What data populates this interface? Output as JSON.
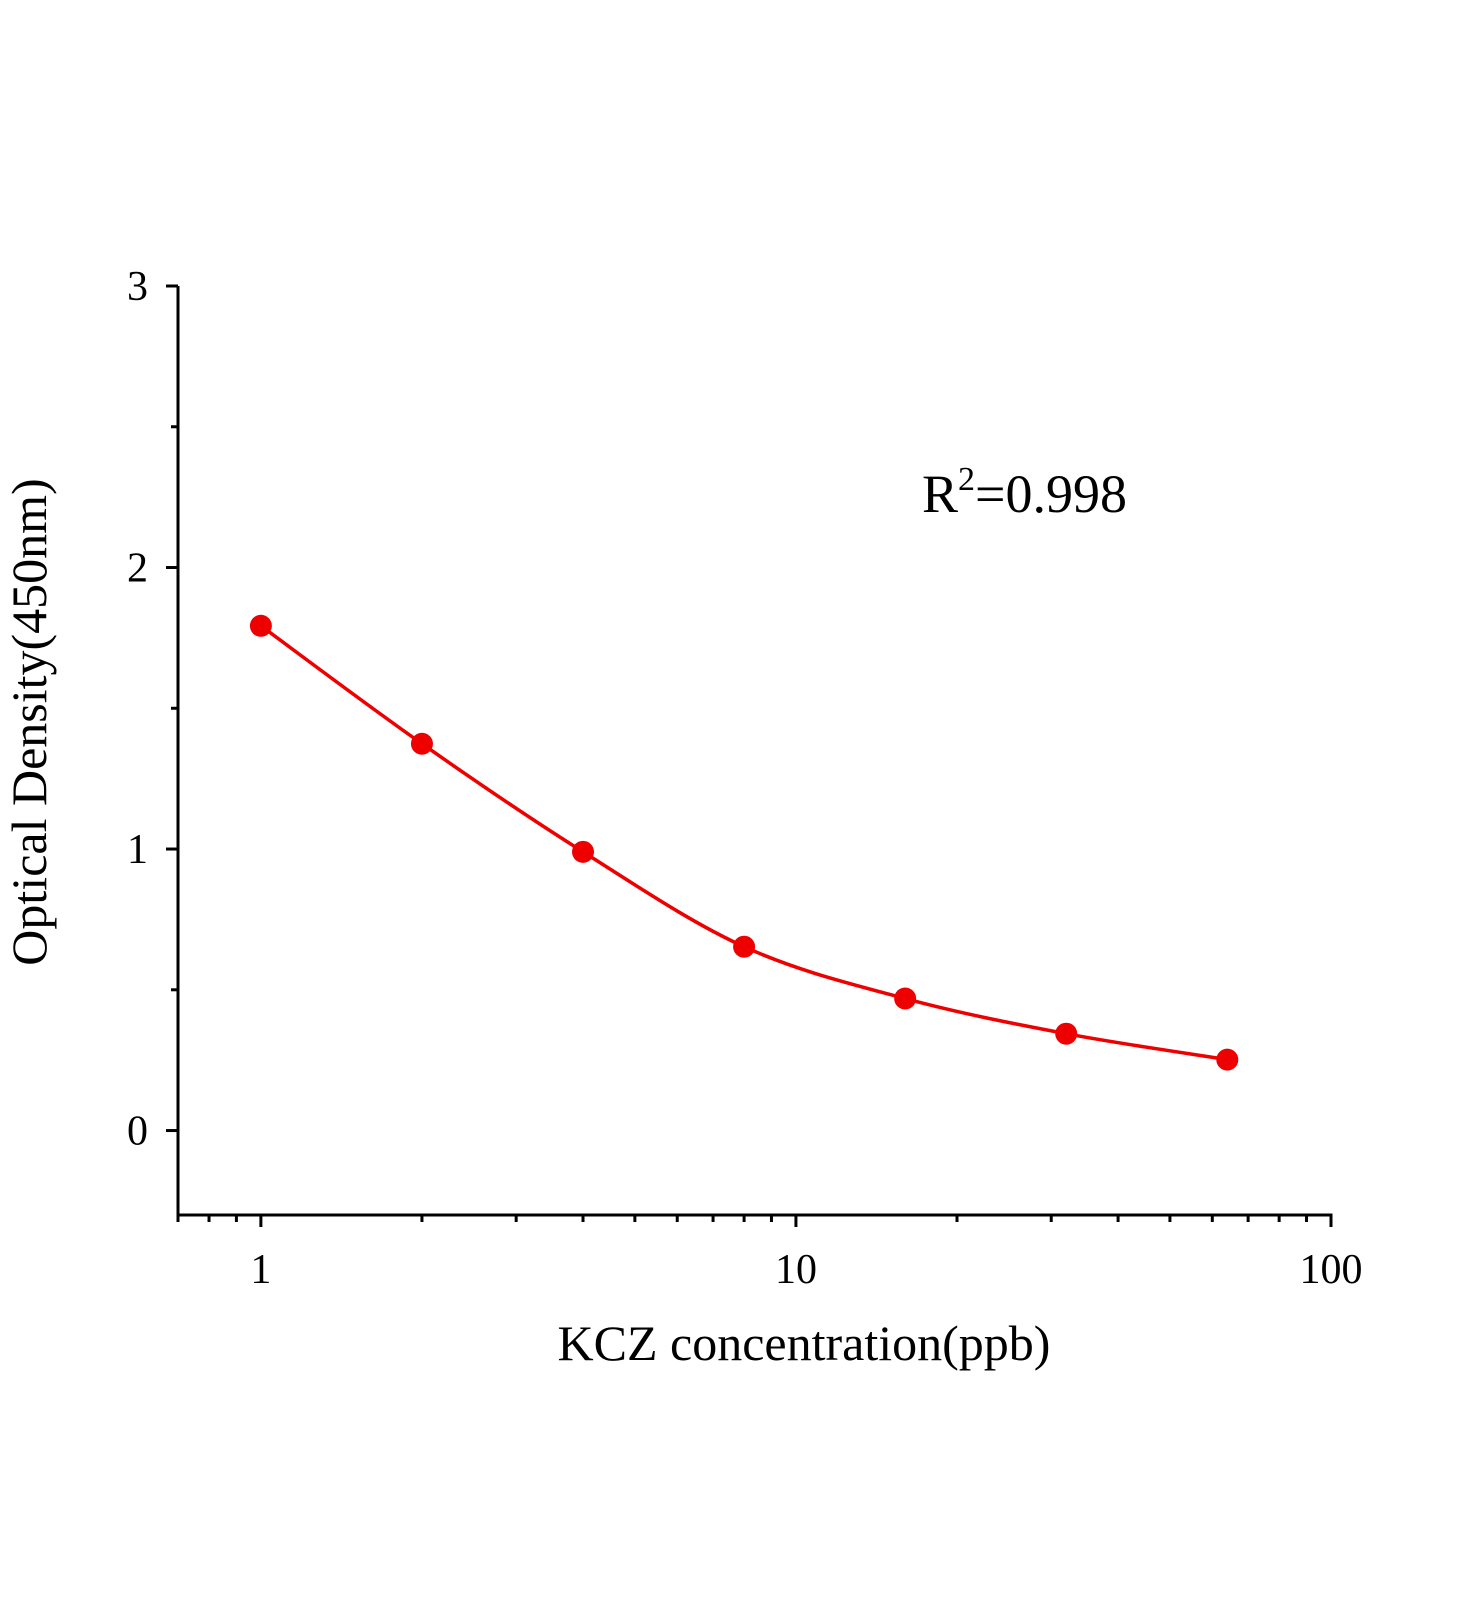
{
  "chart_data": {
    "type": "line",
    "title": "",
    "xlabel": "KCZ concentration(ppb)",
    "ylabel": "Optical Density(450nm)",
    "x_scale": "log",
    "xlim": [
      0.7,
      100
    ],
    "ylim": [
      -0.3,
      3
    ],
    "x_ticks": [
      1,
      10,
      100
    ],
    "x_tick_labels": [
      "1",
      "10",
      "100"
    ],
    "y_ticks": [
      0,
      1,
      2,
      3
    ],
    "y_tick_labels": [
      "0",
      "1",
      "2",
      "3"
    ],
    "grid": false,
    "annotation": {
      "base": "R",
      "sup": "2",
      "rest": "=0.998"
    },
    "series": [
      {
        "x": [
          1,
          2,
          4,
          8,
          16,
          32,
          64
        ],
        "y": [
          1.793,
          1.374,
          0.99,
          0.653,
          0.469,
          0.344,
          0.252
        ],
        "color": "#ee0000",
        "marker": "circle",
        "fit_line": true
      }
    ]
  }
}
